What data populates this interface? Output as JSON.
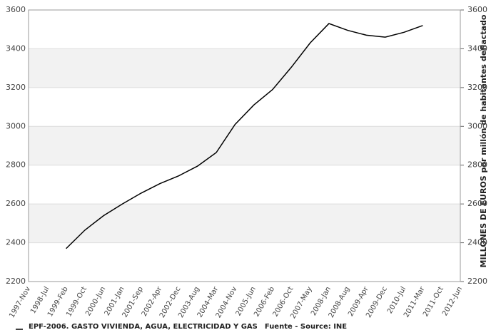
{
  "chart_data": {
    "type": "line",
    "y2_label": "MILLONES DE EUROS por millón de habitantes deflactado",
    "note": "Fuente - Source: INE",
    "categories": [
      "1997-Nov",
      "1998-Jul",
      "1999-Feb",
      "1999-Oct",
      "2000-Jun",
      "2001-Jan",
      "2001-Sep",
      "2002-Apr",
      "2002-Dec",
      "2003-Aug",
      "2004-Mar",
      "2004-Nov",
      "2005-Jun",
      "2006-Feb",
      "2006-Oct",
      "2007-May",
      "2008-Jan",
      "2008-Aug",
      "2009-Apr",
      "2009-Dec",
      "2010-Jul",
      "2011-Mar",
      "2011-Oct",
      "2012-Jun"
    ],
    "series": [
      {
        "name": "EPF-2006. GASTO VIVIENDA, AGUA, ELECTRICIDAD Y GAS",
        "color": "#000000",
        "values": [
          null,
          null,
          2370,
          2465,
          2540,
          2600,
          2656,
          2705,
          2745,
          2795,
          2865,
          3010,
          3110,
          3190,
          3305,
          3430,
          3530,
          3495,
          3470,
          3460,
          3485,
          3520,
          null,
          null
        ]
      }
    ],
    "ylim": [
      2200,
      3600
    ],
    "yticks": [
      2200,
      2400,
      2600,
      2800,
      3000,
      3200,
      3400,
      3600
    ],
    "y2lim": [
      2200,
      3600
    ],
    "y2ticks": [
      2200,
      2400,
      2600,
      2800,
      3000,
      3200,
      3400,
      3600
    ],
    "grid": true,
    "band_color": "#f2f2f2"
  }
}
